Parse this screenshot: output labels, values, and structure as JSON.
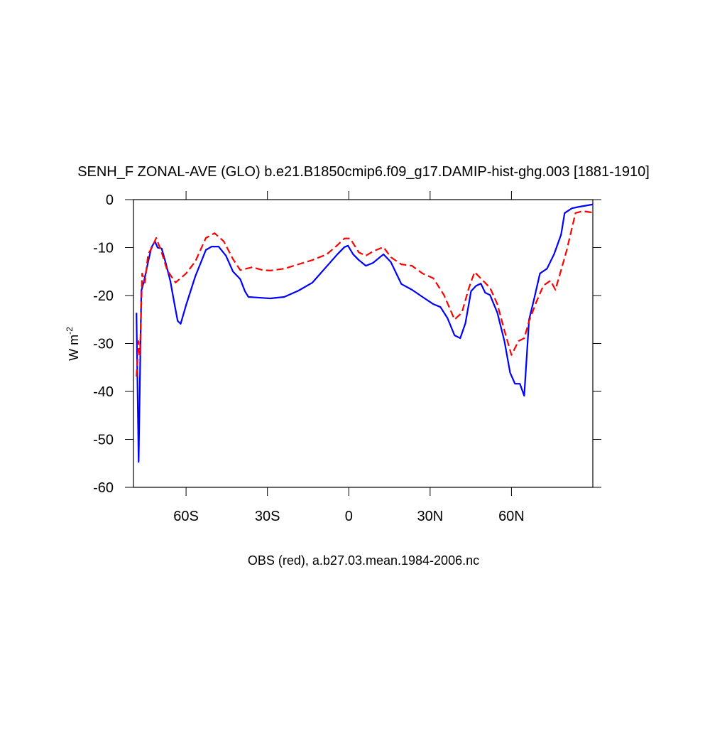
{
  "chart_data": {
    "type": "line",
    "title": "SENH_F ZONAL-AVE (GLO) b.e21.B1850cmip6.f09_g17.DAMIP-hist-ghg.003 [1881-1910]",
    "xlabel": "OBS (red), a.b27.03.mean.1984-2006.nc",
    "ylabel": "W m",
    "ylabel_exponent": "-2",
    "xlim": [
      -79.4,
      90
    ],
    "ylim": [
      -60,
      0
    ],
    "xticks": [
      {
        "value": -60,
        "label": "60S"
      },
      {
        "value": -30,
        "label": "30S"
      },
      0,
      {
        "value": 30,
        "label": "30N"
      },
      {
        "value": 60,
        "label": "60N"
      }
    ],
    "yticks": [
      -60,
      -50,
      -40,
      -30,
      -20,
      -10,
      0
    ],
    "grid": false,
    "series": [
      {
        "color": "#0000ff",
        "dash": false,
        "x": [
          -78.3,
          -77.5,
          -76.5,
          -75.5,
          -74,
          -72.8,
          -71.5,
          -70.5,
          -69,
          -67.6,
          -65.8,
          -64.2,
          -63.1,
          -62,
          -60,
          -56.6,
          -52.7,
          -50.6,
          -48,
          -45.3,
          -42.7,
          -40,
          -38.3,
          -37,
          -34.3,
          -29,
          -23.8,
          -18.6,
          -13.4,
          -8.1,
          -4.2,
          -1.6,
          -0.3,
          1.6,
          3.7,
          6.3,
          8.9,
          12.8,
          15.5,
          19.4,
          23.3,
          27.2,
          31.2,
          33.8,
          36.4,
          39,
          41.1,
          43,
          45.1,
          46.9,
          48.7,
          50.3,
          52.1,
          54.8,
          57.4,
          59.5,
          61.3,
          63.1,
          64.7,
          66.5,
          68.4,
          70.5,
          73.1,
          75.7,
          78.3,
          79.6,
          82.3,
          84.9,
          90
        ],
        "values": [
          -23.6,
          -54.7,
          -19,
          -17,
          -13,
          -10,
          -8.7,
          -10,
          -10.2,
          -13,
          -17,
          -22,
          -25.3,
          -25.9,
          -22,
          -16,
          -10.5,
          -9.8,
          -9.8,
          -11.7,
          -15,
          -16.6,
          -19.1,
          -20.3,
          -20.4,
          -20.6,
          -20.3,
          -19,
          -17.3,
          -13.9,
          -11.4,
          -9.9,
          -9.6,
          -11.4,
          -12.6,
          -13.8,
          -13.2,
          -11.4,
          -13,
          -17.6,
          -18.8,
          -20.3,
          -21.8,
          -22.4,
          -24.7,
          -28.3,
          -28.9,
          -25.8,
          -19.1,
          -18,
          -17.5,
          -19.4,
          -19.9,
          -23.6,
          -29.5,
          -36.1,
          -38.4,
          -38.4,
          -40.9,
          -25,
          -20.6,
          -15.4,
          -14.4,
          -11.4,
          -7.3,
          -2.8,
          -1.8,
          -1.5,
          -1
        ]
      },
      {
        "color": "#ff0000",
        "dash": true,
        "x": [
          -78.3,
          -77.5,
          -77,
          -76.2,
          -75.2,
          -74,
          -72.8,
          -71,
          -69,
          -67,
          -63.9,
          -60,
          -56.6,
          -52.7,
          -49.5,
          -46.1,
          -42.7,
          -40,
          -35.6,
          -31.7,
          -29,
          -23.8,
          -18.6,
          -13.4,
          -8.1,
          -4.2,
          -1.6,
          0.5,
          3.7,
          6.3,
          8.9,
          12.8,
          15.5,
          19.4,
          23.3,
          27.2,
          31.2,
          35.1,
          39,
          41.7,
          44.3,
          46.4,
          49.5,
          52.1,
          54.8,
          57.4,
          60,
          62.6,
          64.7,
          66.5,
          69.2,
          71.8,
          74.4,
          76.2,
          78.3,
          80.4,
          83.6,
          86.2,
          90
        ],
        "values": [
          -36.9,
          -29.5,
          -32.4,
          -15.4,
          -17.3,
          -11.4,
          -10.2,
          -8,
          -11,
          -14.7,
          -17.3,
          -15.4,
          -12.9,
          -8,
          -7,
          -8.7,
          -12.4,
          -14.7,
          -14.1,
          -14.7,
          -14.8,
          -14.4,
          -13.5,
          -12.6,
          -11.4,
          -9.5,
          -8.1,
          -8.1,
          -11,
          -11.7,
          -10.8,
          -9.9,
          -12,
          -13.5,
          -13.8,
          -15.4,
          -16.4,
          -19.9,
          -25,
          -23.6,
          -18.4,
          -15.1,
          -16.9,
          -18.4,
          -21.8,
          -27.3,
          -32.4,
          -29.5,
          -28.9,
          -25.3,
          -21.3,
          -17.9,
          -16.9,
          -18.8,
          -14.7,
          -10.5,
          -2.8,
          -2.4,
          -2.7
        ]
      }
    ]
  }
}
